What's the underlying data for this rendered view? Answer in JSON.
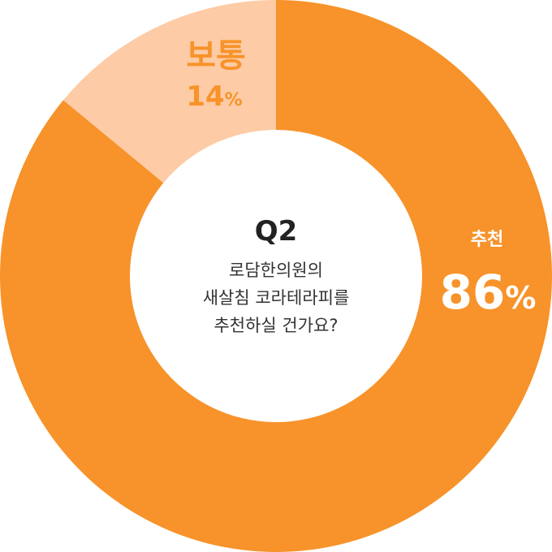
{
  "chart_data": {
    "type": "pie",
    "style": "donut",
    "center": {
      "title": "Q2",
      "lines": [
        "로담한의원의",
        "새살침 코라테라피를",
        "추천하실 건가요?"
      ]
    },
    "slices": [
      {
        "label": "추천",
        "value": 86,
        "display": "86",
        "unit": "%",
        "color": "#F7932A"
      },
      {
        "label": "보통",
        "value": 14,
        "display": "14",
        "unit": "%",
        "color": "#FDCBA5"
      }
    ]
  }
}
